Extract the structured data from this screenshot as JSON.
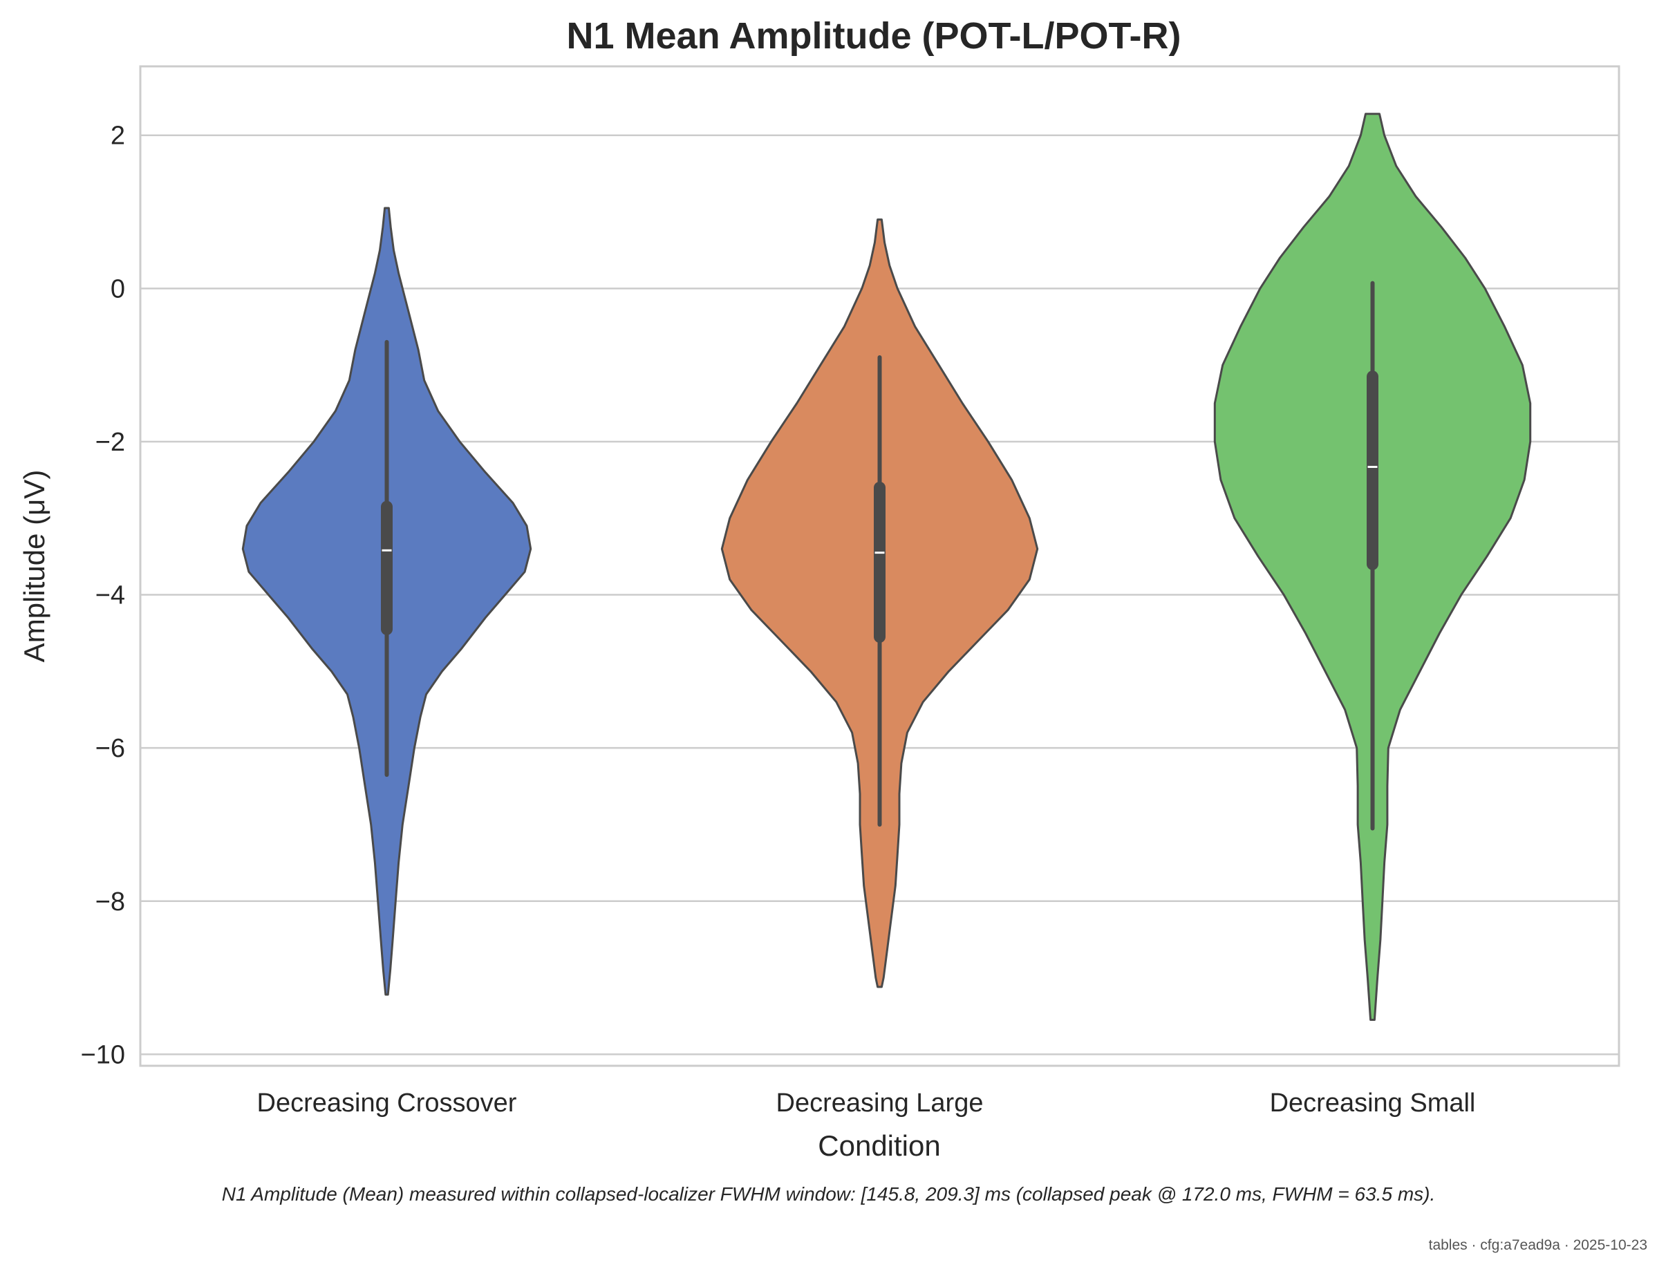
{
  "chart_data": {
    "type": "violin",
    "title": "N1 Mean Amplitude (POT-L/POT-R)",
    "xlabel": "Condition",
    "ylabel": "Amplitude (μV)",
    "ylim": [
      -10.15,
      2.9
    ],
    "y_ticks": [
      2,
      0,
      -2,
      -4,
      -6,
      -8,
      -10
    ],
    "y_tick_labels": [
      "2",
      "0",
      "−2",
      "−4",
      "−6",
      "−8",
      "−10"
    ],
    "grid": "horizontal",
    "categories": [
      "Decreasing Crossover",
      "Decreasing Large",
      "Decreasing Small"
    ],
    "colors": [
      "#5b7bc0",
      "#d98a5f",
      "#74c26f"
    ],
    "series": [
      {
        "category": "Decreasing Crossover",
        "whisker": [
          -6.35,
          -0.7
        ],
        "box": [
          -4.45,
          -2.85
        ],
        "median": -3.42,
        "range": [
          -9.22,
          1.05
        ],
        "profile": [
          [
            1.05,
            0.01
          ],
          [
            0.8,
            0.02
          ],
          [
            0.5,
            0.035
          ],
          [
            0.2,
            0.06
          ],
          [
            -0.3,
            0.11
          ],
          [
            -0.8,
            0.16
          ],
          [
            -1.2,
            0.19
          ],
          [
            -1.6,
            0.26
          ],
          [
            -2.0,
            0.37
          ],
          [
            -2.4,
            0.5
          ],
          [
            -2.8,
            0.64
          ],
          [
            -3.1,
            0.71
          ],
          [
            -3.4,
            0.73
          ],
          [
            -3.7,
            0.7
          ],
          [
            -4.0,
            0.6
          ],
          [
            -4.3,
            0.5
          ],
          [
            -4.7,
            0.38
          ],
          [
            -5.0,
            0.28
          ],
          [
            -5.3,
            0.2
          ],
          [
            -5.6,
            0.17
          ],
          [
            -6.0,
            0.14
          ],
          [
            -6.5,
            0.11
          ],
          [
            -7.0,
            0.08
          ],
          [
            -7.5,
            0.06
          ],
          [
            -8.0,
            0.045
          ],
          [
            -8.5,
            0.03
          ],
          [
            -8.9,
            0.018
          ],
          [
            -9.22,
            0.006
          ]
        ]
      },
      {
        "category": "Decreasing Large",
        "whisker": [
          -7.0,
          -0.9
        ],
        "box": [
          -4.55,
          -2.6
        ],
        "median": -3.45,
        "range": [
          -9.12,
          0.9
        ],
        "profile": [
          [
            0.9,
            0.01
          ],
          [
            0.6,
            0.025
          ],
          [
            0.3,
            0.05
          ],
          [
            0.0,
            0.09
          ],
          [
            -0.5,
            0.18
          ],
          [
            -1.0,
            0.3
          ],
          [
            -1.5,
            0.42
          ],
          [
            -2.0,
            0.55
          ],
          [
            -2.5,
            0.67
          ],
          [
            -3.0,
            0.76
          ],
          [
            -3.4,
            0.8
          ],
          [
            -3.8,
            0.76
          ],
          [
            -4.2,
            0.65
          ],
          [
            -4.6,
            0.5
          ],
          [
            -5.0,
            0.35
          ],
          [
            -5.4,
            0.22
          ],
          [
            -5.8,
            0.14
          ],
          [
            -6.2,
            0.11
          ],
          [
            -6.6,
            0.1
          ],
          [
            -7.0,
            0.1
          ],
          [
            -7.4,
            0.09
          ],
          [
            -7.8,
            0.08
          ],
          [
            -8.2,
            0.06
          ],
          [
            -8.6,
            0.04
          ],
          [
            -9.0,
            0.02
          ],
          [
            -9.12,
            0.01
          ]
        ]
      },
      {
        "category": "Decreasing Small",
        "whisker": [
          -7.05,
          0.07
        ],
        "box": [
          -3.6,
          -1.15
        ],
        "median": -2.33,
        "range": [
          -9.55,
          2.28
        ],
        "profile": [
          [
            2.28,
            0.035
          ],
          [
            2.0,
            0.06
          ],
          [
            1.6,
            0.12
          ],
          [
            1.2,
            0.22
          ],
          [
            0.8,
            0.35
          ],
          [
            0.4,
            0.47
          ],
          [
            0.0,
            0.57
          ],
          [
            -0.5,
            0.67
          ],
          [
            -1.0,
            0.76
          ],
          [
            -1.5,
            0.8
          ],
          [
            -2.0,
            0.8
          ],
          [
            -2.5,
            0.77
          ],
          [
            -3.0,
            0.7
          ],
          [
            -3.5,
            0.58
          ],
          [
            -4.0,
            0.45
          ],
          [
            -4.5,
            0.34
          ],
          [
            -5.0,
            0.24
          ],
          [
            -5.5,
            0.14
          ],
          [
            -6.0,
            0.08
          ],
          [
            -6.5,
            0.075
          ],
          [
            -7.0,
            0.075
          ],
          [
            -7.5,
            0.06
          ],
          [
            -8.0,
            0.05
          ],
          [
            -8.5,
            0.04
          ],
          [
            -9.0,
            0.025
          ],
          [
            -9.55,
            0.01
          ]
        ]
      }
    ]
  },
  "caption": "N1 Amplitude (Mean) measured within collapsed-localizer FWHM window: [145.8, 209.3] ms (collapsed peak @ 172.0 ms, FWHM = 63.5 ms).",
  "footer": "tables · cfg:a7ead9a · 2025-10-23"
}
